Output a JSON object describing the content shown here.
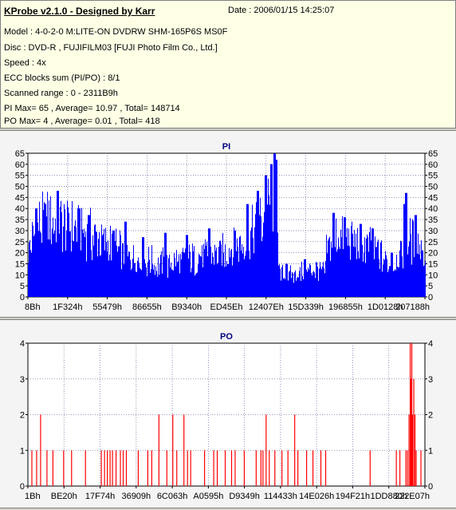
{
  "header": {
    "title": "KProbe v2.1.0 - Designed by Karr",
    "date": "Date : 2006/01/15 14:25:07",
    "lines": [
      "Model : 4-0-2-0 M:LITE-ON DVDRW SHM-165P6S MS0F",
      "Disc : DVD-R , FUJIFILM03 [FUJI Photo Film Co., Ltd.]",
      "Speed : 4x",
      "ECC blocks sum (PI/PO) : 8/1",
      "Scanned range : 0 - 2311B9h",
      "PI Max= 65 , Average= 10.97 , Total= 148714",
      "PO Max= 4 , Average= 0.01 , Total= 418"
    ]
  },
  "colors": {
    "pi": "#0000ff",
    "po": "#ff0000",
    "grid": "#7777aa",
    "plot_bg": "#ffffff"
  },
  "chart_data": [
    {
      "type": "bar",
      "title": "PI",
      "ylim": [
        0,
        65
      ],
      "yticks": [
        0,
        5,
        10,
        15,
        20,
        25,
        30,
        35,
        40,
        45,
        50,
        55,
        60,
        65
      ],
      "xtick_labels": [
        "8Bh",
        "1F324h",
        "55479h",
        "86655h",
        "B9340h",
        "ED45Eh",
        "12407Eh",
        "15D339h",
        "196855h",
        "1D0128h",
        "207188h"
      ],
      "grid": true,
      "segments": [
        {
          "x": [
            0.0,
            0.02,
            0.05,
            0.08,
            0.12,
            0.16,
            0.2
          ],
          "y": [
            22,
            34,
            38,
            36,
            33,
            30,
            26
          ]
        },
        {
          "x": [
            0.2,
            0.25,
            0.3,
            0.35,
            0.4,
            0.45,
            0.5
          ],
          "y": [
            26,
            20,
            17,
            16,
            18,
            20,
            22
          ]
        },
        {
          "x": [
            0.5,
            0.54,
            0.57,
            0.59,
            0.61,
            0.62,
            0.63
          ],
          "y": [
            22,
            27,
            32,
            38,
            44,
            50,
            48
          ]
        },
        {
          "x": [
            0.63,
            0.65,
            0.68,
            0.7,
            0.72,
            0.75
          ],
          "y": [
            12,
            9,
            11,
            12,
            14,
            12
          ]
        },
        {
          "x": [
            0.75,
            0.78,
            0.81,
            0.85,
            0.88,
            0.9,
            0.92
          ],
          "y": [
            23,
            30,
            28,
            25,
            22,
            17,
            14
          ]
        },
        {
          "x": [
            0.92,
            0.95,
            0.98,
            1.0
          ],
          "y": [
            15,
            25,
            30,
            15
          ]
        }
      ],
      "spikes": [
        {
          "x": 0.02,
          "y": 40
        },
        {
          "x": 0.043,
          "y": 42
        },
        {
          "x": 0.075,
          "y": 48
        },
        {
          "x": 0.1,
          "y": 38
        },
        {
          "x": 0.128,
          "y": 40
        },
        {
          "x": 0.152,
          "y": 37
        },
        {
          "x": 0.215,
          "y": 30
        },
        {
          "x": 0.245,
          "y": 34
        },
        {
          "x": 0.29,
          "y": 27
        },
        {
          "x": 0.346,
          "y": 29
        },
        {
          "x": 0.4,
          "y": 28
        },
        {
          "x": 0.455,
          "y": 31
        },
        {
          "x": 0.52,
          "y": 30
        },
        {
          "x": 0.553,
          "y": 42
        },
        {
          "x": 0.578,
          "y": 48
        },
        {
          "x": 0.598,
          "y": 55
        },
        {
          "x": 0.612,
          "y": 60
        },
        {
          "x": 0.62,
          "y": 65
        },
        {
          "x": 0.625,
          "y": 62
        },
        {
          "x": 0.65,
          "y": 15
        },
        {
          "x": 0.697,
          "y": 17
        },
        {
          "x": 0.77,
          "y": 38
        },
        {
          "x": 0.797,
          "y": 36
        },
        {
          "x": 0.838,
          "y": 33
        },
        {
          "x": 0.868,
          "y": 31
        },
        {
          "x": 0.915,
          "y": 20
        },
        {
          "x": 0.948,
          "y": 42
        },
        {
          "x": 0.952,
          "y": 47
        },
        {
          "x": 0.975,
          "y": 37
        },
        {
          "x": 0.992,
          "y": 21
        }
      ]
    },
    {
      "type": "bar",
      "title": "PO",
      "ylim": [
        0,
        4
      ],
      "yticks": [
        0,
        1,
        2,
        3,
        4
      ],
      "xtick_labels": [
        "1Bh",
        "BE20h",
        "17F74h",
        "36909h",
        "6C063h",
        "A0595h",
        "D9349h",
        "114433h",
        "14E026h",
        "194F21h",
        "1DD880h",
        "222E07h"
      ],
      "grid": true,
      "bars": [
        {
          "x": 0.01,
          "y": 1
        },
        {
          "x": 0.022,
          "y": 1
        },
        {
          "x": 0.032,
          "y": 2
        },
        {
          "x": 0.048,
          "y": 1
        },
        {
          "x": 0.063,
          "y": 1
        },
        {
          "x": 0.09,
          "y": 1
        },
        {
          "x": 0.11,
          "y": 1
        },
        {
          "x": 0.145,
          "y": 1
        },
        {
          "x": 0.185,
          "y": 1
        },
        {
          "x": 0.193,
          "y": 1
        },
        {
          "x": 0.2,
          "y": 1
        },
        {
          "x": 0.207,
          "y": 1
        },
        {
          "x": 0.213,
          "y": 1
        },
        {
          "x": 0.222,
          "y": 1
        },
        {
          "x": 0.233,
          "y": 1
        },
        {
          "x": 0.24,
          "y": 1
        },
        {
          "x": 0.248,
          "y": 1
        },
        {
          "x": 0.278,
          "y": 1
        },
        {
          "x": 0.302,
          "y": 1
        },
        {
          "x": 0.312,
          "y": 1
        },
        {
          "x": 0.33,
          "y": 2
        },
        {
          "x": 0.35,
          "y": 1
        },
        {
          "x": 0.365,
          "y": 2
        },
        {
          "x": 0.375,
          "y": 1
        },
        {
          "x": 0.393,
          "y": 2
        },
        {
          "x": 0.402,
          "y": 1
        },
        {
          "x": 0.41,
          "y": 1
        },
        {
          "x": 0.445,
          "y": 1
        },
        {
          "x": 0.468,
          "y": 1
        },
        {
          "x": 0.477,
          "y": 1
        },
        {
          "x": 0.497,
          "y": 1
        },
        {
          "x": 0.513,
          "y": 1
        },
        {
          "x": 0.522,
          "y": 1
        },
        {
          "x": 0.545,
          "y": 1
        },
        {
          "x": 0.575,
          "y": 1
        },
        {
          "x": 0.587,
          "y": 1
        },
        {
          "x": 0.592,
          "y": 1
        },
        {
          "x": 0.6,
          "y": 2
        },
        {
          "x": 0.608,
          "y": 1
        },
        {
          "x": 0.622,
          "y": 1
        },
        {
          "x": 0.64,
          "y": 1
        },
        {
          "x": 0.655,
          "y": 1
        },
        {
          "x": 0.672,
          "y": 2
        },
        {
          "x": 0.68,
          "y": 1
        },
        {
          "x": 0.702,
          "y": 1
        },
        {
          "x": 0.718,
          "y": 1
        },
        {
          "x": 0.738,
          "y": 1
        },
        {
          "x": 0.75,
          "y": 1
        },
        {
          "x": 0.862,
          "y": 1
        },
        {
          "x": 0.928,
          "y": 1
        },
        {
          "x": 0.937,
          "y": 1
        },
        {
          "x": 0.952,
          "y": 1
        },
        {
          "x": 0.956,
          "y": 1
        },
        {
          "x": 0.96,
          "y": 2
        },
        {
          "x": 0.963,
          "y": 4
        },
        {
          "x": 0.965,
          "y": 3
        },
        {
          "x": 0.967,
          "y": 4
        },
        {
          "x": 0.969,
          "y": 2
        },
        {
          "x": 0.972,
          "y": 3
        },
        {
          "x": 0.975,
          "y": 2
        },
        {
          "x": 0.978,
          "y": 1
        },
        {
          "x": 0.99,
          "y": 1
        }
      ]
    }
  ]
}
